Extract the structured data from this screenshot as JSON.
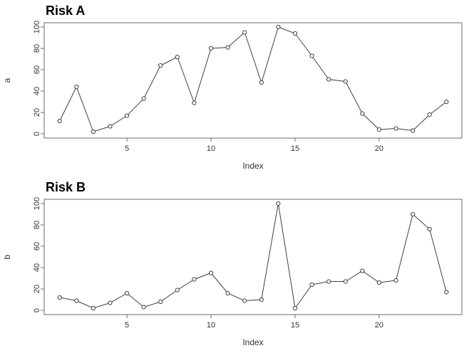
{
  "accent_colors": {
    "plot_line": "#404040",
    "axis_stroke": "#6b6b6b",
    "marker_fill": "#ffffff",
    "background": "#ffffff",
    "text": "#333333"
  },
  "chart_data": [
    {
      "type": "line",
      "title": "Risk A",
      "xlabel": "Index",
      "ylabel": "a",
      "legend": "none",
      "grid": false,
      "marker": "open-circle",
      "x": [
        1,
        2,
        3,
        4,
        5,
        6,
        7,
        8,
        9,
        10,
        11,
        12,
        13,
        14,
        15,
        16,
        17,
        18,
        19,
        20,
        21,
        22,
        23,
        24
      ],
      "values": [
        12,
        44,
        2,
        7,
        17,
        33,
        64,
        72,
        29,
        80,
        81,
        95,
        48,
        100,
        94,
        73,
        51,
        49,
        19,
        4,
        5,
        3,
        18,
        30
      ],
      "xticks": [
        5,
        10,
        15,
        20
      ],
      "yticks": [
        0,
        20,
        40,
        60,
        80,
        100
      ],
      "xlim": [
        1,
        24
      ],
      "ylim": [
        0,
        100
      ]
    },
    {
      "type": "line",
      "title": "Risk B",
      "xlabel": "Index",
      "ylabel": "b",
      "legend": "none",
      "grid": false,
      "marker": "open-circle",
      "x": [
        1,
        2,
        3,
        4,
        5,
        6,
        7,
        8,
        9,
        10,
        11,
        12,
        13,
        14,
        15,
        16,
        17,
        18,
        19,
        20,
        21,
        22,
        23,
        24
      ],
      "values": [
        12,
        9,
        2,
        7,
        16,
        3,
        8,
        19,
        29,
        35,
        16,
        9,
        10,
        100,
        2,
        24,
        27,
        27,
        37,
        26,
        28,
        90,
        76,
        17
      ],
      "xticks": [
        5,
        10,
        15,
        20
      ],
      "yticks": [
        0,
        20,
        40,
        60,
        80,
        100
      ],
      "xlim": [
        1,
        24
      ],
      "ylim": [
        0,
        100
      ]
    }
  ]
}
